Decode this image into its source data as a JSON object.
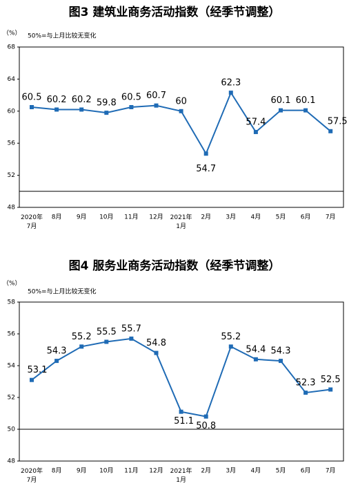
{
  "chart_data": [
    {
      "type": "line",
      "title": "图3  建筑业商务活动指数（经季节调整）",
      "unit": "（%）",
      "note": "50%=与上月比较无变化",
      "categories": [
        "2020年\n7月",
        "8月",
        "9月",
        "10月",
        "11月",
        "12月",
        "2021年\n1月",
        "2月",
        "3月",
        "4月",
        "5月",
        "6月",
        "7月"
      ],
      "series": [
        {
          "name": "建筑业商务活动指数",
          "color": "#1f6bb5",
          "values": [
            60.5,
            60.2,
            60.2,
            59.8,
            60.5,
            60.7,
            60.0,
            54.7,
            62.3,
            57.4,
            60.1,
            60.1,
            57.5
          ]
        }
      ],
      "ylim": [
        48,
        68
      ],
      "yticks": [
        48,
        52,
        56,
        60,
        64,
        68
      ],
      "ref_line": 50
    },
    {
      "type": "line",
      "title": "图4  服务业商务活动指数（经季节调整）",
      "unit": "（%）",
      "note": "50%=与上月比较无变化",
      "categories": [
        "2020年\n7月",
        "8月",
        "9月",
        "10月",
        "11月",
        "12月",
        "2021年\n1月",
        "2月",
        "3月",
        "4月",
        "5月",
        "6月",
        "7月"
      ],
      "series": [
        {
          "name": "服务业商务活动指数",
          "color": "#1f6bb5",
          "values": [
            53.1,
            54.3,
            55.2,
            55.5,
            55.7,
            54.8,
            51.1,
            50.8,
            55.2,
            54.4,
            54.3,
            52.3,
            52.5
          ]
        }
      ],
      "ylim": [
        48,
        58
      ],
      "yticks": [
        48,
        50,
        52,
        54,
        56,
        58
      ],
      "ref_line": 50
    }
  ]
}
